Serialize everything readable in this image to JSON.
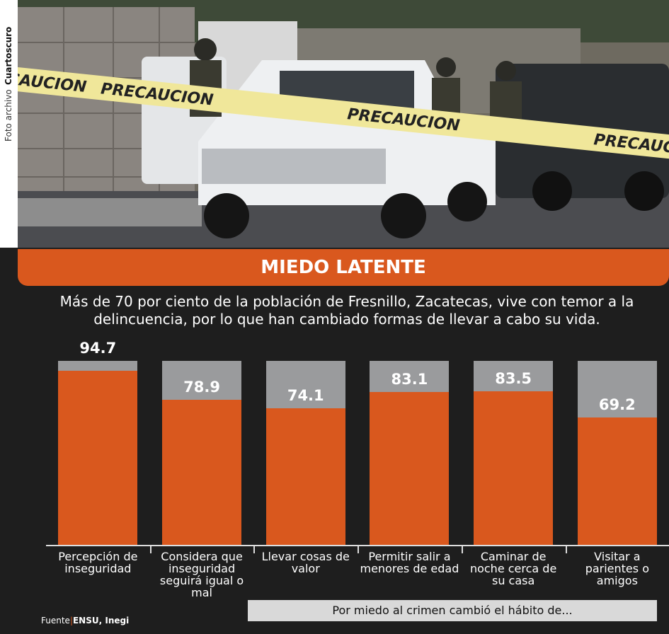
{
  "chart_data": {
    "type": "bar",
    "title": "MIEDO LATENTE",
    "subtitle": "Más de 70 por ciento de la población de Fresnillo, Zacatecas, vive con temor a la delincuencia, por lo que han cambiado formas de llevar a cabo su vida.",
    "categories": [
      "Percepción de inseguridad",
      "Considera que inseguridad seguirá igual o mal",
      "Llevar cosas de valor",
      "Permitir salir a menores de edad",
      "Caminar de noche cerca de su casa",
      "Visitar a parientes o amigos"
    ],
    "values": [
      94.7,
      78.9,
      74.1,
      83.1,
      83.5,
      69.2
    ],
    "color": "#d9581e",
    "ylim": [
      0,
      100
    ],
    "x_label": "Por miedo al crimen cambió el hábito de...",
    "source_label": "Fuente",
    "source": "ENSU, Inegi",
    "photo_credit_label": "Foto archivo",
    "photo_credit": "Cuartoscuro",
    "tape_text": "PRECAUCION"
  }
}
